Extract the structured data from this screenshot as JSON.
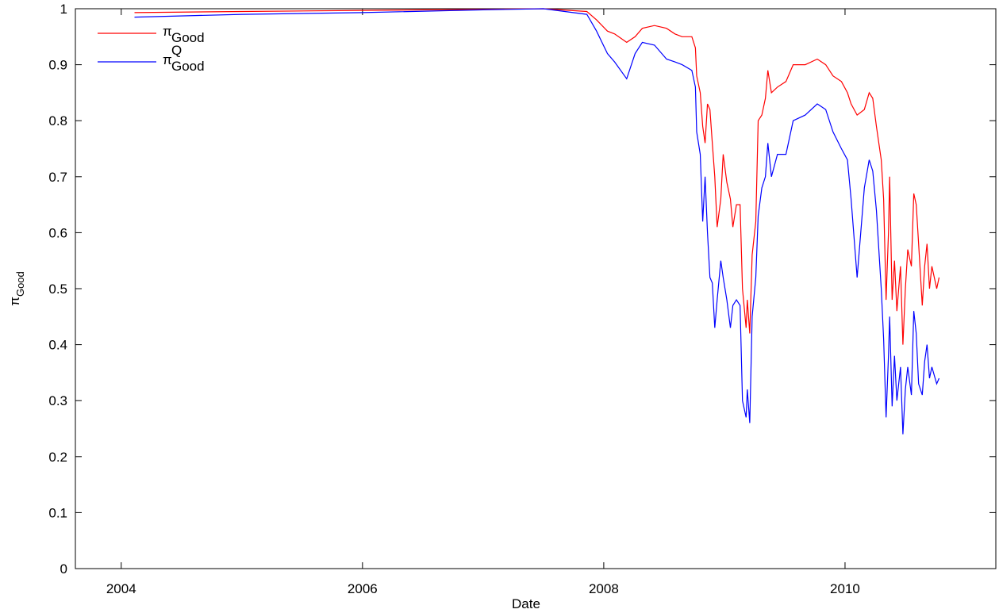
{
  "chart_data": {
    "type": "line",
    "xlabel": "Date",
    "ylabel": "π",
    "ylabel_sub": "Good",
    "x": [
      2004.11,
      2005,
      2006,
      2007,
      2007.5,
      2007.86,
      2007.94,
      2008.03,
      2008.09,
      2008.19,
      2008.26,
      2008.32,
      2008.42,
      2008.52,
      2008.59,
      2008.65,
      2008.73,
      2008.76,
      2008.77,
      2008.8,
      2008.82,
      2008.84,
      2008.86,
      2008.88,
      2008.9,
      2008.92,
      2008.94,
      2008.97,
      2008.99,
      2009.02,
      2009.05,
      2009.07,
      2009.1,
      2009.13,
      2009.15,
      2009.18,
      2009.19,
      2009.21,
      2009.23,
      2009.26,
      2009.28,
      2009.31,
      2009.34,
      2009.36,
      2009.39,
      2009.44,
      2009.51,
      2009.57,
      2009.67,
      2009.77,
      2009.84,
      2009.9,
      2009.97,
      2010.02,
      2010.05,
      2010.1,
      2010.16,
      2010.2,
      2010.23,
      2010.26,
      2010.3,
      2010.32,
      2010.34,
      2010.36,
      2010.37,
      2010.39,
      2010.41,
      2010.43,
      2010.46,
      2010.48,
      2010.5,
      2010.52,
      2010.55,
      2010.57,
      2010.59,
      2010.61,
      2010.64,
      2010.66,
      2010.68,
      2010.7,
      2010.72,
      2010.76,
      2010.78
    ],
    "series": [
      {
        "name": "π",
        "name_sub": "Good",
        "color": "#ff0000",
        "values": [
          0.993,
          0.995,
          0.997,
          0.999,
          1.0,
          0.995,
          0.98,
          0.96,
          0.955,
          0.94,
          0.95,
          0.965,
          0.97,
          0.965,
          0.955,
          0.95,
          0.95,
          0.93,
          0.88,
          0.85,
          0.79,
          0.76,
          0.83,
          0.82,
          0.76,
          0.7,
          0.61,
          0.66,
          0.74,
          0.69,
          0.66,
          0.61,
          0.65,
          0.65,
          0.5,
          0.43,
          0.48,
          0.42,
          0.56,
          0.62,
          0.8,
          0.81,
          0.84,
          0.89,
          0.85,
          0.86,
          0.87,
          0.9,
          0.9,
          0.91,
          0.9,
          0.88,
          0.87,
          0.85,
          0.83,
          0.81,
          0.82,
          0.85,
          0.84,
          0.79,
          0.73,
          0.66,
          0.48,
          0.6,
          0.7,
          0.48,
          0.55,
          0.46,
          0.54,
          0.4,
          0.5,
          0.57,
          0.54,
          0.67,
          0.65,
          0.58,
          0.47,
          0.54,
          0.58,
          0.5,
          0.54,
          0.5,
          0.52
        ]
      },
      {
        "name": "π",
        "name_sub": "Good",
        "name_sup": "Q",
        "color": "#0000ff",
        "values": [
          0.985,
          0.99,
          0.993,
          0.998,
          1.0,
          0.99,
          0.96,
          0.92,
          0.905,
          0.875,
          0.92,
          0.94,
          0.935,
          0.91,
          0.905,
          0.9,
          0.89,
          0.86,
          0.78,
          0.74,
          0.62,
          0.7,
          0.6,
          0.52,
          0.51,
          0.43,
          0.48,
          0.55,
          0.52,
          0.48,
          0.43,
          0.47,
          0.48,
          0.47,
          0.3,
          0.27,
          0.32,
          0.26,
          0.45,
          0.52,
          0.63,
          0.68,
          0.7,
          0.76,
          0.7,
          0.74,
          0.74,
          0.8,
          0.81,
          0.83,
          0.82,
          0.78,
          0.75,
          0.73,
          0.66,
          0.52,
          0.68,
          0.73,
          0.71,
          0.64,
          0.5,
          0.41,
          0.27,
          0.38,
          0.45,
          0.29,
          0.38,
          0.3,
          0.36,
          0.24,
          0.32,
          0.36,
          0.31,
          0.46,
          0.42,
          0.33,
          0.31,
          0.37,
          0.4,
          0.34,
          0.36,
          0.33,
          0.34
        ]
      }
    ],
    "xlim": [
      2003.62,
      2011.25
    ],
    "xticks": [
      2004,
      2006,
      2008,
      2010
    ],
    "ylim": [
      0,
      1
    ],
    "yticks": [
      0,
      0.1,
      0.2,
      0.3,
      0.4,
      0.5,
      0.6,
      0.7,
      0.8,
      0.9,
      1
    ],
    "legend": "upper-left"
  }
}
